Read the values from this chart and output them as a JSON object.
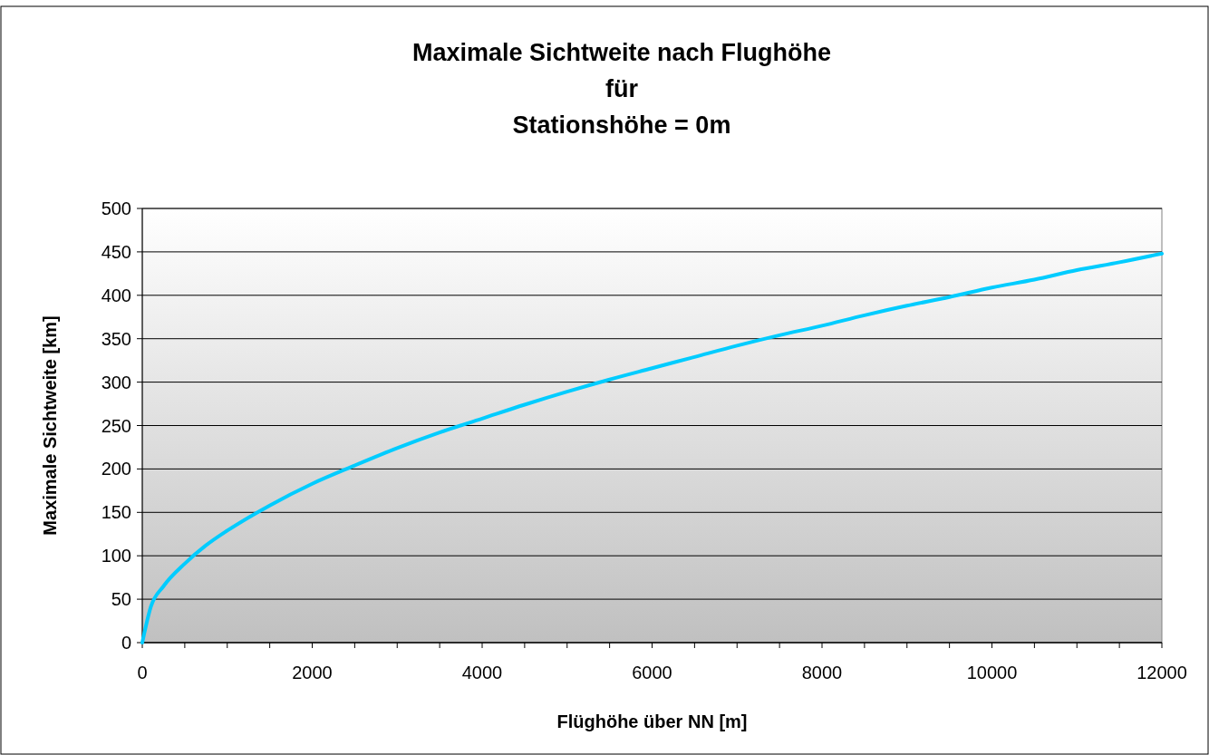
{
  "chart_data": {
    "type": "line",
    "title": "Maximale Sichtweite nach Flughöhe\nfür\nStationshöhe = 0m",
    "xlabel": "Flüghöhe über NN [m]",
    "ylabel": "Maximale Sichtweite [km]",
    "x": [
      0,
      100,
      250,
      500,
      750,
      1000,
      1500,
      2000,
      2500,
      3000,
      3500,
      4000,
      4500,
      5000,
      5500,
      6000,
      6500,
      7000,
      7500,
      8000,
      8500,
      9000,
      9500,
      10000,
      10500,
      11000,
      11500,
      12000
    ],
    "series": [
      {
        "color": "#00ccff",
        "values": [
          0,
          41,
          65,
          91,
          112,
          129,
          158,
          183,
          204,
          224,
          242,
          258,
          274,
          289,
          303,
          316,
          329,
          342,
          354,
          365,
          377,
          388,
          398,
          409,
          418,
          429,
          438,
          448
        ]
      }
    ],
    "xlim": [
      0,
      12000
    ],
    "xticks": [
      0,
      {
        "value": 500,
        "label": null
      },
      {
        "value": 1000,
        "label": null
      },
      {
        "value": 1500,
        "label": null
      },
      2000,
      {
        "value": 2500,
        "label": null
      },
      {
        "value": 3000,
        "label": null
      },
      {
        "value": 3500,
        "label": null
      },
      4000,
      {
        "value": 4500,
        "label": null
      },
      {
        "value": 5000,
        "label": null
      },
      {
        "value": 5500,
        "label": null
      },
      6000,
      {
        "value": 6500,
        "label": null
      },
      {
        "value": 7000,
        "label": null
      },
      {
        "value": 7500,
        "label": null
      },
      8000,
      {
        "value": 8500,
        "label": null
      },
      {
        "value": 9000,
        "label": null
      },
      {
        "value": 9500,
        "label": null
      },
      10000,
      {
        "value": 10500,
        "label": null
      },
      {
        "value": 11000,
        "label": null
      },
      {
        "value": 11500,
        "label": null
      },
      12000
    ],
    "ylim": [
      0,
      500
    ],
    "yticks": [
      0,
      50,
      100,
      150,
      200,
      250,
      300,
      350,
      400,
      450,
      500
    ],
    "grid": "y",
    "marker": "none",
    "line_style": "solid"
  }
}
